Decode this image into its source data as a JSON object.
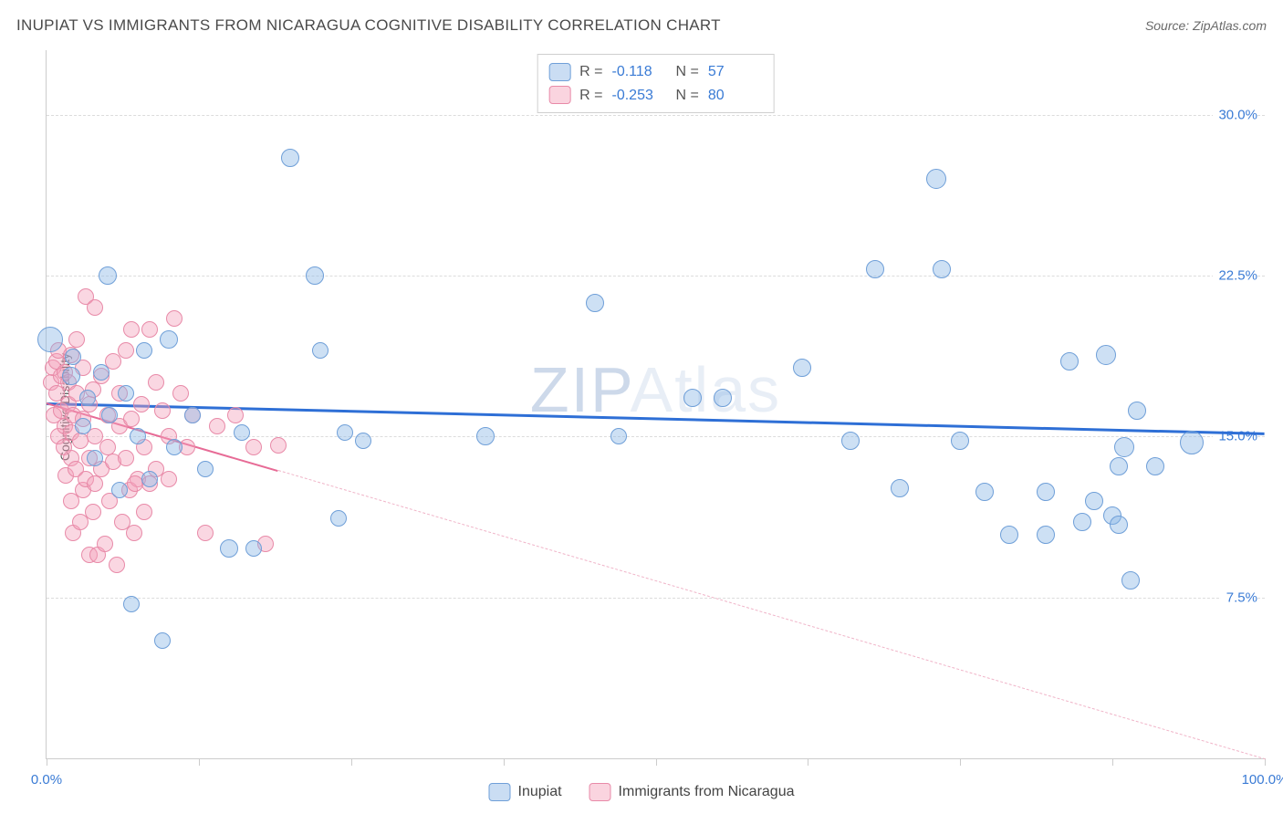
{
  "header": {
    "title": "INUPIAT VS IMMIGRANTS FROM NICARAGUA COGNITIVE DISABILITY CORRELATION CHART",
    "source_prefix": "Source: ",
    "source_name": "ZipAtlas.com"
  },
  "watermark": {
    "part1": "ZIP",
    "part2": "Atlas"
  },
  "axes": {
    "y_label": "Cognitive Disability",
    "x_min": 0,
    "x_max": 100,
    "y_min": 0,
    "y_max": 33,
    "y_ticks": [
      {
        "value": 7.5,
        "label": "7.5%"
      },
      {
        "value": 15.0,
        "label": "15.0%"
      },
      {
        "value": 22.5,
        "label": "22.5%"
      },
      {
        "value": 30.0,
        "label": "30.0%"
      }
    ],
    "x_ticks": [
      0,
      12.5,
      25,
      37.5,
      50,
      62.5,
      75,
      87.5,
      100
    ],
    "x_labels": [
      {
        "value": 0,
        "label": "0.0%"
      },
      {
        "value": 100,
        "label": "100.0%"
      }
    ],
    "grid_color": "#dcdcdc",
    "tick_label_color": "#3a7bd5"
  },
  "stats": {
    "series_a": {
      "R_label": "R =",
      "R": "-0.118",
      "N_label": "N =",
      "N": "57"
    },
    "series_b": {
      "R_label": "R =",
      "R": "-0.253",
      "N_label": "N =",
      "N": "80"
    }
  },
  "legend": {
    "a": "Inupiat",
    "b": "Immigrants from Nicaragua"
  },
  "chart": {
    "type": "scatter",
    "background": "#ffffff",
    "marker_radius_min": 7,
    "marker_radius_max": 13,
    "series_a": {
      "name": "Inupiat",
      "fill": "rgba(137,180,229,0.42)",
      "stroke": "#6f9fd8",
      "trend": {
        "color": "#2e6fd6",
        "y_at_x0": 16.6,
        "y_at_x100": 15.2,
        "solid_to_x": 100
      },
      "points": [
        {
          "x": 0.3,
          "y": 19.5,
          "r": 13
        },
        {
          "x": 2.0,
          "y": 17.8,
          "r": 9
        },
        {
          "x": 2.2,
          "y": 18.7,
          "r": 8
        },
        {
          "x": 3.0,
          "y": 15.5,
          "r": 8
        },
        {
          "x": 3.4,
          "y": 16.8,
          "r": 8
        },
        {
          "x": 4.0,
          "y": 14.0,
          "r": 8
        },
        {
          "x": 4.5,
          "y": 18.0,
          "r": 8
        },
        {
          "x": 5.0,
          "y": 22.5,
          "r": 9
        },
        {
          "x": 5.2,
          "y": 16.0,
          "r": 8
        },
        {
          "x": 6.0,
          "y": 12.5,
          "r": 8
        },
        {
          "x": 6.5,
          "y": 17.0,
          "r": 8
        },
        {
          "x": 7.0,
          "y": 7.2,
          "r": 8
        },
        {
          "x": 7.5,
          "y": 15.0,
          "r": 8
        },
        {
          "x": 8.0,
          "y": 19.0,
          "r": 8
        },
        {
          "x": 8.5,
          "y": 13.0,
          "r": 8
        },
        {
          "x": 9.5,
          "y": 5.5,
          "r": 8
        },
        {
          "x": 10.0,
          "y": 19.5,
          "r": 9
        },
        {
          "x": 10.5,
          "y": 14.5,
          "r": 8
        },
        {
          "x": 12.0,
          "y": 16.0,
          "r": 8
        },
        {
          "x": 13.0,
          "y": 13.5,
          "r": 8
        },
        {
          "x": 15.0,
          "y": 9.8,
          "r": 9
        },
        {
          "x": 16.0,
          "y": 15.2,
          "r": 8
        },
        {
          "x": 17.0,
          "y": 9.8,
          "r": 8
        },
        {
          "x": 20.0,
          "y": 28.0,
          "r": 9
        },
        {
          "x": 22.0,
          "y": 22.5,
          "r": 9
        },
        {
          "x": 22.5,
          "y": 19.0,
          "r": 8
        },
        {
          "x": 24.0,
          "y": 11.2,
          "r": 8
        },
        {
          "x": 24.5,
          "y": 15.2,
          "r": 8
        },
        {
          "x": 26.0,
          "y": 14.8,
          "r": 8
        },
        {
          "x": 36.0,
          "y": 15.0,
          "r": 9
        },
        {
          "x": 45.0,
          "y": 21.2,
          "r": 9
        },
        {
          "x": 47.0,
          "y": 15.0,
          "r": 8
        },
        {
          "x": 53.0,
          "y": 16.8,
          "r": 9
        },
        {
          "x": 55.5,
          "y": 16.8,
          "r": 9
        },
        {
          "x": 62.0,
          "y": 18.2,
          "r": 9
        },
        {
          "x": 66.0,
          "y": 14.8,
          "r": 9
        },
        {
          "x": 68.0,
          "y": 22.8,
          "r": 9
        },
        {
          "x": 70.0,
          "y": 12.6,
          "r": 9
        },
        {
          "x": 73.0,
          "y": 27.0,
          "r": 10
        },
        {
          "x": 73.5,
          "y": 22.8,
          "r": 9
        },
        {
          "x": 75.0,
          "y": 14.8,
          "r": 9
        },
        {
          "x": 77.0,
          "y": 12.4,
          "r": 9
        },
        {
          "x": 79.0,
          "y": 10.4,
          "r": 9
        },
        {
          "x": 82.0,
          "y": 10.4,
          "r": 9
        },
        {
          "x": 82.0,
          "y": 12.4,
          "r": 9
        },
        {
          "x": 84.0,
          "y": 18.5,
          "r": 9
        },
        {
          "x": 85.0,
          "y": 11.0,
          "r": 9
        },
        {
          "x": 86.0,
          "y": 12.0,
          "r": 9
        },
        {
          "x": 87.0,
          "y": 18.8,
          "r": 10
        },
        {
          "x": 87.5,
          "y": 11.3,
          "r": 9
        },
        {
          "x": 88.0,
          "y": 10.9,
          "r": 9
        },
        {
          "x": 88.0,
          "y": 13.6,
          "r": 9
        },
        {
          "x": 88.5,
          "y": 14.5,
          "r": 10
        },
        {
          "x": 89.0,
          "y": 8.3,
          "r": 9
        },
        {
          "x": 89.5,
          "y": 16.2,
          "r": 9
        },
        {
          "x": 91.0,
          "y": 13.6,
          "r": 9
        },
        {
          "x": 94.0,
          "y": 14.7,
          "r": 12
        }
      ]
    },
    "series_b": {
      "name": "Immigrants from Nicaragua",
      "fill": "rgba(244,160,185,0.42)",
      "stroke": "#e88aa8",
      "trend": {
        "color_solid": "#e76b96",
        "color_dash": "#f0b4c8",
        "y_at_x0": 16.6,
        "y_at_x100": 0.0,
        "solid_to_x": 19
      },
      "points": [
        {
          "x": 0.4,
          "y": 17.5,
          "r": 8
        },
        {
          "x": 0.5,
          "y": 18.2,
          "r": 8
        },
        {
          "x": 0.6,
          "y": 16.0,
          "r": 8
        },
        {
          "x": 0.8,
          "y": 17.0,
          "r": 8
        },
        {
          "x": 0.8,
          "y": 18.5,
          "r": 8
        },
        {
          "x": 1.0,
          "y": 15.0,
          "r": 8
        },
        {
          "x": 1.0,
          "y": 19.0,
          "r": 8
        },
        {
          "x": 1.2,
          "y": 16.2,
          "r": 8
        },
        {
          "x": 1.2,
          "y": 17.8,
          "r": 8
        },
        {
          "x": 1.4,
          "y": 14.5,
          "r": 8
        },
        {
          "x": 1.5,
          "y": 15.5,
          "r": 8
        },
        {
          "x": 1.5,
          "y": 18.0,
          "r": 8
        },
        {
          "x": 1.6,
          "y": 13.2,
          "r": 8
        },
        {
          "x": 1.8,
          "y": 16.5,
          "r": 8
        },
        {
          "x": 1.8,
          "y": 17.5,
          "r": 8
        },
        {
          "x": 2.0,
          "y": 12.0,
          "r": 8
        },
        {
          "x": 2.0,
          "y": 14.0,
          "r": 8
        },
        {
          "x": 2.0,
          "y": 15.2,
          "r": 8
        },
        {
          "x": 2.0,
          "y": 18.8,
          "r": 8
        },
        {
          "x": 2.2,
          "y": 10.5,
          "r": 8
        },
        {
          "x": 2.2,
          "y": 16.0,
          "r": 8
        },
        {
          "x": 2.4,
          "y": 13.5,
          "r": 8
        },
        {
          "x": 2.5,
          "y": 17.0,
          "r": 8
        },
        {
          "x": 2.5,
          "y": 19.5,
          "r": 8
        },
        {
          "x": 2.8,
          "y": 11.0,
          "r": 8
        },
        {
          "x": 2.8,
          "y": 14.8,
          "r": 8
        },
        {
          "x": 3.0,
          "y": 12.5,
          "r": 8
        },
        {
          "x": 3.0,
          "y": 15.8,
          "r": 8
        },
        {
          "x": 3.0,
          "y": 18.2,
          "r": 8
        },
        {
          "x": 3.2,
          "y": 21.5,
          "r": 8
        },
        {
          "x": 3.2,
          "y": 13.0,
          "r": 8
        },
        {
          "x": 3.5,
          "y": 9.5,
          "r": 8
        },
        {
          "x": 3.5,
          "y": 14.0,
          "r": 8
        },
        {
          "x": 3.5,
          "y": 16.5,
          "r": 8
        },
        {
          "x": 3.8,
          "y": 11.5,
          "r": 8
        },
        {
          "x": 3.8,
          "y": 17.2,
          "r": 8
        },
        {
          "x": 4.0,
          "y": 21.0,
          "r": 8
        },
        {
          "x": 4.0,
          "y": 12.8,
          "r": 8
        },
        {
          "x": 4.0,
          "y": 15.0,
          "r": 8
        },
        {
          "x": 4.2,
          "y": 9.5,
          "r": 8
        },
        {
          "x": 4.5,
          "y": 13.5,
          "r": 8
        },
        {
          "x": 4.5,
          "y": 17.8,
          "r": 8
        },
        {
          "x": 4.8,
          "y": 10.0,
          "r": 8
        },
        {
          "x": 5.0,
          "y": 14.5,
          "r": 8
        },
        {
          "x": 5.0,
          "y": 16.0,
          "r": 8
        },
        {
          "x": 5.2,
          "y": 12.0,
          "r": 8
        },
        {
          "x": 5.5,
          "y": 18.5,
          "r": 8
        },
        {
          "x": 5.5,
          "y": 13.8,
          "r": 8
        },
        {
          "x": 5.8,
          "y": 9.0,
          "r": 8
        },
        {
          "x": 6.0,
          "y": 15.5,
          "r": 8
        },
        {
          "x": 6.0,
          "y": 17.0,
          "r": 8
        },
        {
          "x": 6.2,
          "y": 11.0,
          "r": 8
        },
        {
          "x": 6.5,
          "y": 14.0,
          "r": 8
        },
        {
          "x": 6.5,
          "y": 19.0,
          "r": 8
        },
        {
          "x": 6.8,
          "y": 12.5,
          "r": 8
        },
        {
          "x": 7.0,
          "y": 15.8,
          "r": 8
        },
        {
          "x": 7.0,
          "y": 20.0,
          "r": 8
        },
        {
          "x": 7.2,
          "y": 10.5,
          "r": 8
        },
        {
          "x": 7.5,
          "y": 13.0,
          "r": 8
        },
        {
          "x": 7.8,
          "y": 16.5,
          "r": 8
        },
        {
          "x": 8.0,
          "y": 11.5,
          "r": 8
        },
        {
          "x": 8.0,
          "y": 14.5,
          "r": 8
        },
        {
          "x": 8.5,
          "y": 20.0,
          "r": 8
        },
        {
          "x": 8.5,
          "y": 12.8,
          "r": 8
        },
        {
          "x": 9.0,
          "y": 17.5,
          "r": 8
        },
        {
          "x": 9.0,
          "y": 13.5,
          "r": 8
        },
        {
          "x": 9.5,
          "y": 16.2,
          "r": 8
        },
        {
          "x": 10.0,
          "y": 13.0,
          "r": 8
        },
        {
          "x": 10.0,
          "y": 15.0,
          "r": 8
        },
        {
          "x": 10.5,
          "y": 20.5,
          "r": 8
        },
        {
          "x": 11.0,
          "y": 17.0,
          "r": 8
        },
        {
          "x": 11.5,
          "y": 14.5,
          "r": 8
        },
        {
          "x": 12.0,
          "y": 16.0,
          "r": 8
        },
        {
          "x": 13.0,
          "y": 10.5,
          "r": 8
        },
        {
          "x": 14.0,
          "y": 15.5,
          "r": 8
        },
        {
          "x": 15.5,
          "y": 16.0,
          "r": 8
        },
        {
          "x": 17.0,
          "y": 14.5,
          "r": 8
        },
        {
          "x": 18.0,
          "y": 10.0,
          "r": 8
        },
        {
          "x": 19.0,
          "y": 14.6,
          "r": 8
        },
        {
          "x": 7.3,
          "y": 12.8,
          "r": 8
        }
      ]
    }
  }
}
